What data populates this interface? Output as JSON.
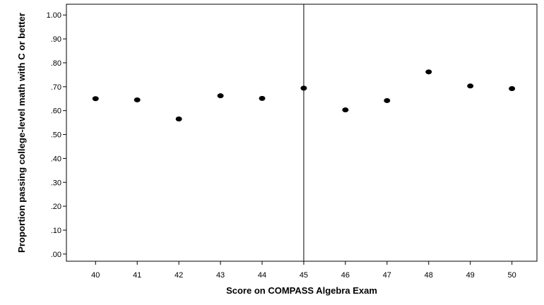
{
  "chart_data": {
    "type": "scatter",
    "title": "",
    "xlabel": "Score on COMPASS Algebra Exam",
    "ylabel": "Proportion passing college-level math with C or better",
    "x": [
      40,
      41,
      42,
      43,
      44,
      45,
      46,
      47,
      48,
      49,
      50
    ],
    "y": [
      0.65,
      0.645,
      0.565,
      0.662,
      0.651,
      0.694,
      0.603,
      0.642,
      0.762,
      0.703,
      0.692
    ],
    "xlim": [
      39.3,
      50.6
    ],
    "ylim": [
      -0.03,
      1.045
    ],
    "x_ticks": [
      40,
      41,
      42,
      43,
      44,
      45,
      46,
      47,
      48,
      49,
      50
    ],
    "x_tick_labels": [
      "40",
      "41",
      "42",
      "43",
      "44",
      "45",
      "46",
      "47",
      "48",
      "49",
      "50"
    ],
    "y_ticks": [
      0,
      0.1,
      0.2,
      0.3,
      0.4,
      0.5,
      0.6,
      0.7,
      0.8,
      0.9,
      1.0
    ],
    "y_tick_labels": [
      ".00",
      ".10",
      ".20",
      ".30",
      ".40",
      ".50",
      ".60",
      ".70",
      ".80",
      ".90",
      "1.00"
    ],
    "reference_line_x": 45,
    "grid": false,
    "legend": "none",
    "colors": {
      "points": "#000000",
      "axes": "#000000",
      "background": "#ffffff"
    }
  }
}
